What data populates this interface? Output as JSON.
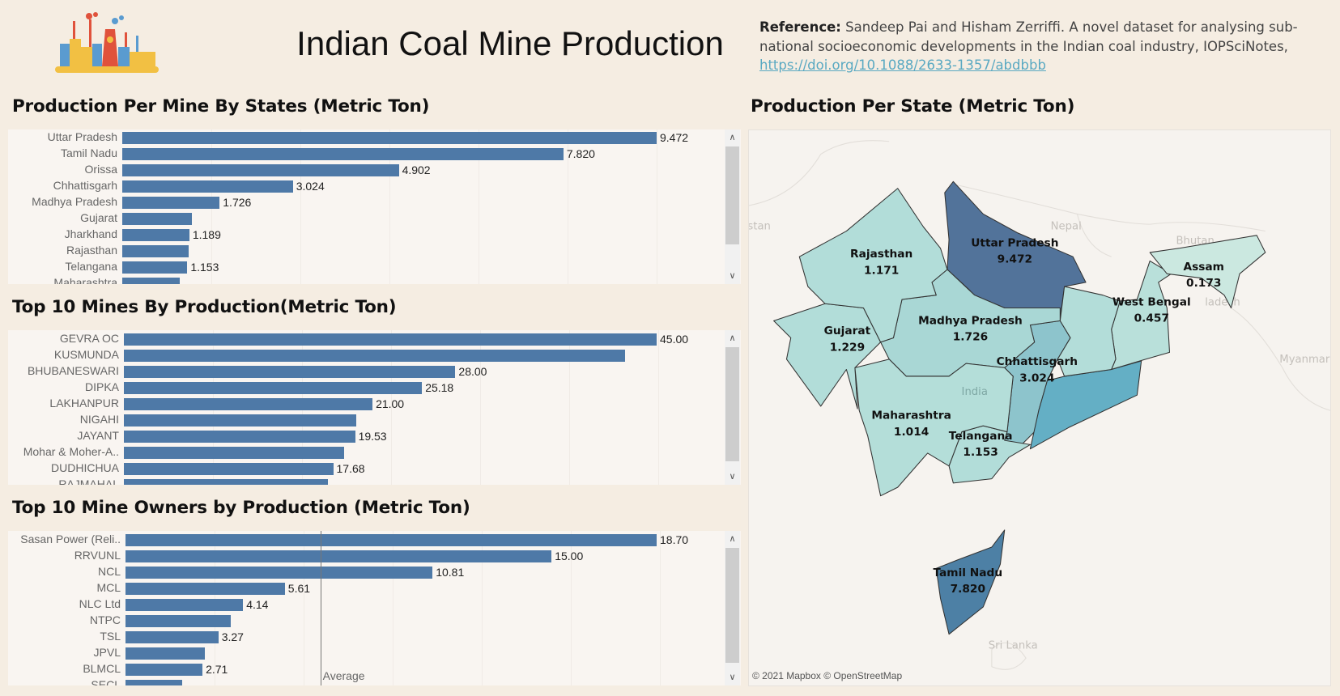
{
  "header": {
    "title": "Indian Coal Mine Production",
    "logo": "coal-factory-illustration",
    "reference_label": "Reference:",
    "reference_text": "Sandeep Pai and Hisham Zerriffi. A novel dataset for analysing sub-national socioeconomic developments in the Indian coal industry, IOPSciNotes,",
    "reference_link": "https://doi.org/10.1088/2633-1357/abdbbb"
  },
  "colors": {
    "bar": "#4e79a7",
    "background": "#f5ede2",
    "panel": "#f9f5f1"
  },
  "chart_data": [
    {
      "type": "bar",
      "orientation": "horizontal",
      "title": "Production Per Mine By States (Metric Ton)",
      "categories": [
        "Uttar Pradesh",
        "Tamil Nadu",
        "Orissa",
        "Chhattisgarh",
        "Madhya Pradesh",
        "Gujarat",
        "Jharkhand",
        "Rajasthan",
        "Telangana",
        "Maharashtra"
      ],
      "values": [
        9.472,
        7.82,
        4.902,
        3.024,
        1.726,
        1.229,
        1.189,
        1.171,
        1.153,
        1.014
      ],
      "labels": [
        "9.472",
        "7.820",
        "4.902",
        "3.024",
        "1.726",
        null,
        "1.189",
        null,
        "1.153",
        null
      ],
      "xlim": [
        0,
        10.4
      ],
      "grid": false
    },
    {
      "type": "bar",
      "orientation": "horizontal",
      "title": "Top 10 Mines By Production(Metric Ton)",
      "categories": [
        "GEVRA OC",
        "KUSMUNDA",
        "BHUBANESWARI",
        "DIPKA",
        "LAKHANPUR",
        "NIGAHI",
        "JAYANT",
        "Mohar & Moher-A..",
        "DUDHICHUA",
        "RAJMAHAL"
      ],
      "values": [
        45.0,
        42.3,
        28.0,
        25.18,
        21.0,
        19.6,
        19.53,
        18.6,
        17.68,
        17.2
      ],
      "labels": [
        "45.00",
        null,
        "28.00",
        "25.18",
        "21.00",
        null,
        "19.53",
        null,
        "17.68",
        null
      ],
      "xlim": [
        0,
        49.5
      ],
      "grid": false
    },
    {
      "type": "bar",
      "orientation": "horizontal",
      "title": "Top 10 Mine Owners by Production (Metric Ton)",
      "categories": [
        "Sasan Power (Reli..",
        "RRVUNL",
        "NCL",
        "MCL",
        "NLC Ltd",
        "NTPC",
        "TSL",
        "JPVL",
        "BLMCL",
        "SECL"
      ],
      "values": [
        18.7,
        15.0,
        10.81,
        5.61,
        4.14,
        3.7,
        3.27,
        2.8,
        2.71,
        2.0
      ],
      "labels": [
        "18.70",
        "15.00",
        "10.81",
        "5.61",
        "4.14",
        null,
        "3.27",
        null,
        "2.71",
        null
      ],
      "reference_line": {
        "label": "Average",
        "value": 6.86
      },
      "xlim": [
        0,
        20.6
      ],
      "grid": false
    }
  ],
  "map": {
    "title": "Production Per State (Metric Ton)",
    "attribution": "© 2021 Mapbox © OpenStreetMap",
    "background_labels": [
      "stan",
      "Nepal",
      "Bhutan",
      "ladesh",
      "Myanmar",
      "Sri Lanka",
      "India"
    ],
    "states": [
      {
        "name": "Uttar Pradesh",
        "value": "9.472",
        "color": "#52739a"
      },
      {
        "name": "Tamil Nadu",
        "value": "7.820",
        "color": "#4d80a5"
      },
      {
        "name": "Chhattisgarh",
        "value": "3.024",
        "color": "#8dc4cc"
      },
      {
        "name": "Madhya Pradesh",
        "value": "1.726",
        "color": "#a9d7d5"
      },
      {
        "name": "Gujarat",
        "value": "1.229",
        "color": "#b2ddd9"
      },
      {
        "name": "Rajasthan",
        "value": "1.171",
        "color": "#b2ddd9"
      },
      {
        "name": "Telangana",
        "value": "1.153",
        "color": "#b2ddd9"
      },
      {
        "name": "Maharashtra",
        "value": "1.014",
        "color": "#b4ded9"
      },
      {
        "name": "West Bengal",
        "value": "0.457",
        "color": "#b9e0da"
      },
      {
        "name": "Assam",
        "value": "0.173",
        "color": "#cbe8e0"
      },
      {
        "name": "Orissa",
        "value": "",
        "color": "#64afc5"
      },
      {
        "name": "Jharkhand",
        "value": "",
        "color": "#b3ddd9"
      }
    ]
  }
}
